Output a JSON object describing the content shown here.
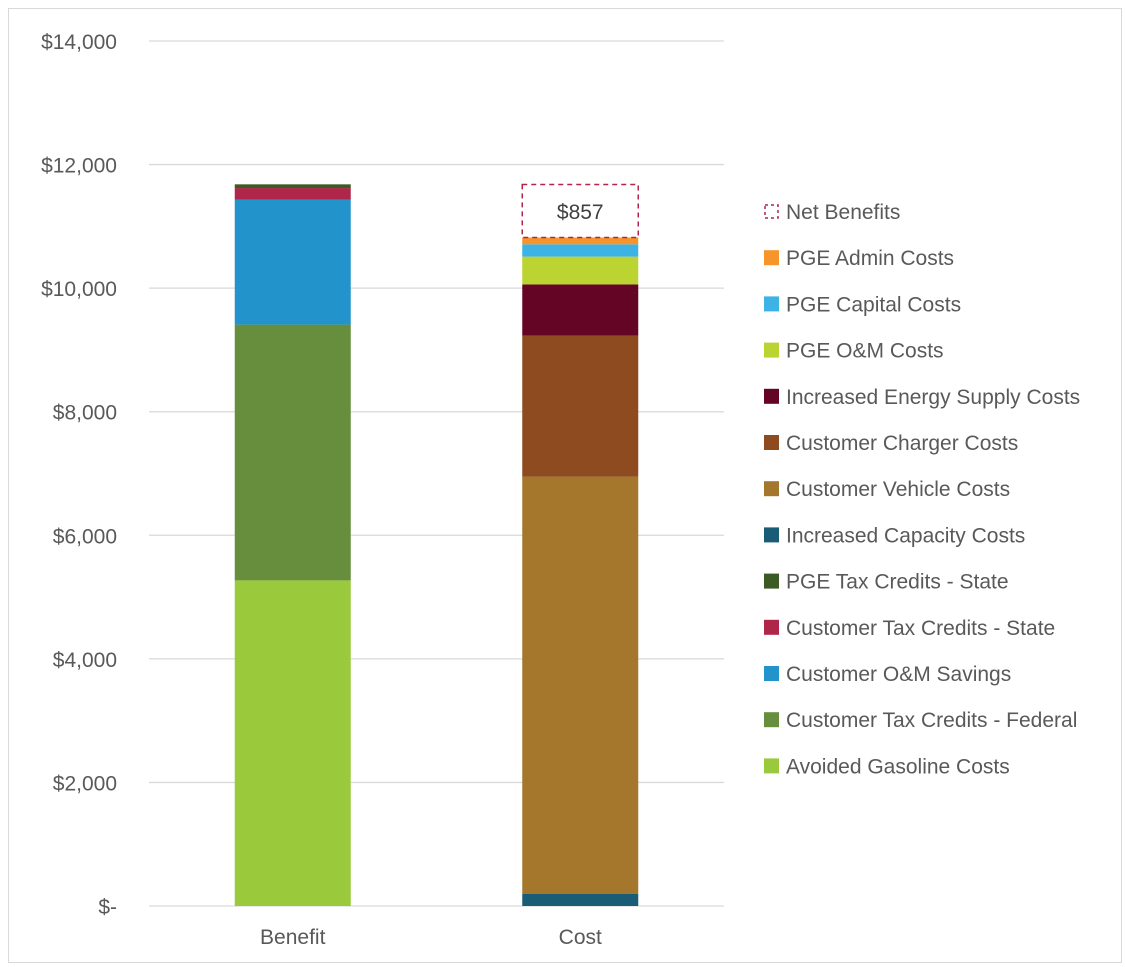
{
  "chart_data": {
    "type": "bar",
    "stacked": true,
    "categories": [
      "Benefit",
      "Cost"
    ],
    "yticks": [
      "$-",
      "$2,000",
      "$4,000",
      "$6,000",
      "$8,000",
      "$10,000",
      "$12,000",
      "$14,000"
    ],
    "ylim": [
      0,
      14000
    ],
    "grid": true,
    "legend_position": "right",
    "series": [
      {
        "name": "Avoided Gasoline Costs",
        "color": "#9ACA3C",
        "values": [
          5270,
          0
        ]
      },
      {
        "name": "Customer Tax Credits - Federal",
        "color": "#668E3C",
        "values": [
          4140,
          0
        ]
      },
      {
        "name": "Customer O&M Savings",
        "color": "#2394CB",
        "values": [
          2020,
          0
        ]
      },
      {
        "name": "Customer Tax Credits - State",
        "color": "#B0264A",
        "values": [
          190,
          0
        ]
      },
      {
        "name": "PGE Tax Credits - State",
        "color": "#3C5A24",
        "values": [
          60,
          0
        ]
      },
      {
        "name": "Increased Capacity Costs",
        "color": "#195C75",
        "values": [
          0,
          200
        ]
      },
      {
        "name": "Customer Vehicle Costs",
        "color": "#A5772C",
        "values": [
          0,
          6750
        ]
      },
      {
        "name": "Customer Charger Costs",
        "color": "#8E4B20",
        "values": [
          0,
          2280
        ]
      },
      {
        "name": "Increased Energy Supply Costs",
        "color": "#650525",
        "values": [
          0,
          830
        ]
      },
      {
        "name": "PGE O&M Costs",
        "color": "#BCD431",
        "values": [
          0,
          450
        ]
      },
      {
        "name": "PGE Capital Costs",
        "color": "#3DB3E5",
        "values": [
          0,
          200
        ]
      },
      {
        "name": "PGE Admin Costs",
        "color": "#F7942A",
        "values": [
          0,
          110
        ]
      },
      {
        "name": "Net Benefits",
        "color": "#B0264A",
        "dashed": true,
        "values": [
          0,
          857
        ]
      }
    ],
    "annotation": {
      "text": "$857",
      "category": "Cost",
      "series": "Net Benefits"
    },
    "legend_order": [
      "Net Benefits",
      "PGE Admin Costs",
      "PGE Capital Costs",
      "PGE O&M Costs",
      "Increased Energy Supply Costs",
      "Customer Charger Costs",
      "Customer Vehicle Costs",
      "Increased Capacity Costs",
      "PGE Tax Credits - State",
      "Customer Tax Credits - State",
      "Customer O&M Savings",
      "Customer Tax Credits - Federal",
      "Avoided Gasoline Costs"
    ],
    "colors": {
      "grid": "#d9d9d9",
      "axis_text": "#595959",
      "legend_text": "#595959",
      "annotation_text": "#404040"
    }
  }
}
